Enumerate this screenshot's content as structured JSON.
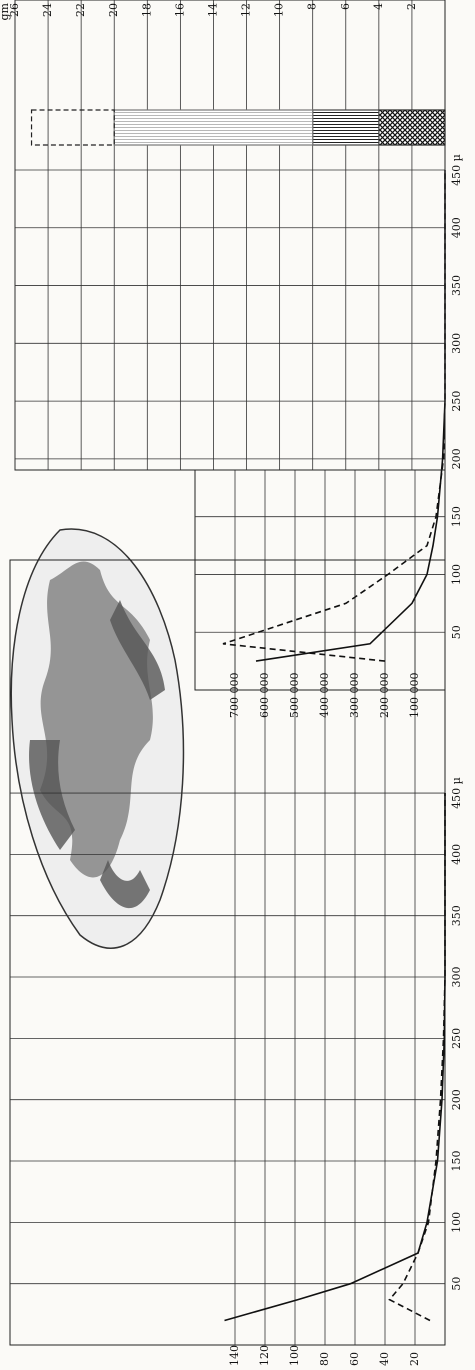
{
  "chart_data": [
    {
      "type": "line",
      "x": [
        20,
        37,
        50,
        75,
        100,
        150,
        200,
        250,
        300,
        350,
        400,
        450
      ],
      "series": [
        {
          "color": "#111111",
          "style": "solid",
          "values": [
            147,
            98,
            63,
            18,
            12,
            5,
            2,
            0.5,
            0,
            0,
            0,
            0
          ]
        },
        {
          "color": "#111111",
          "style": "dashed",
          "values": [
            10,
            37,
            28,
            18,
            11,
            6,
            3,
            1,
            0,
            0,
            0,
            0
          ]
        }
      ],
      "xlim": [
        0,
        640
      ],
      "xticks": [
        50,
        100,
        150,
        200,
        250,
        300,
        350,
        400,
        {
          "value": 450,
          "label": "450 µ"
        }
      ],
      "ylim": [
        0,
        290
      ],
      "yticks": [
        20,
        40,
        60,
        80,
        100,
        120,
        140
      ],
      "grid": true
    },
    {
      "type": "line",
      "x": [
        25,
        40,
        75,
        100,
        125,
        150,
        200,
        250,
        300,
        350,
        400,
        450
      ],
      "series": [
        {
          "color": "#111111",
          "style": "solid",
          "values": [
            630000,
            250000,
            110000,
            60000,
            40000,
            25000,
            8000,
            0,
            0,
            0,
            0,
            0
          ]
        },
        {
          "color": "#111111",
          "style": "dashed",
          "values": [
            200000,
            740000,
            330000,
            190000,
            60000,
            30000,
            5000,
            0,
            0,
            0,
            0,
            0
          ]
        }
      ],
      "xlim": [
        0,
        450
      ],
      "xticks": [
        50,
        100,
        150,
        200,
        250,
        300,
        350,
        400,
        {
          "value": 450,
          "label": "450 µ"
        }
      ],
      "ylim": [
        0,
        800000
      ],
      "yticks": [
        {
          "value": 100000,
          "label": "100 000"
        },
        {
          "value": 200000,
          "label": "200 000"
        },
        {
          "value": 300000,
          "label": "300 000"
        },
        {
          "value": 400000,
          "label": "400 000"
        },
        {
          "value": 500000,
          "label": "500 000"
        },
        {
          "value": 600000,
          "label": "600 000"
        },
        {
          "value": 700000,
          "label": "700 000"
        }
      ],
      "grid": true
    },
    {
      "type": "bar",
      "y_label": "gm",
      "categories": [
        null
      ],
      "series": [
        {
          "color": "#222222",
          "values": [
            4
          ]
        },
        {
          "color": "#444444",
          "values": [
            4
          ]
        },
        {
          "color": "#777777",
          "values": [
            12
          ]
        },
        {
          "color": "#222222",
          "values": [
            5
          ]
        }
      ],
      "ylim": [
        0,
        26
      ],
      "yticks": [
        2,
        4,
        6,
        8,
        10,
        12,
        14,
        16,
        18,
        20,
        22,
        24,
        26
      ],
      "grid": true
    }
  ]
}
